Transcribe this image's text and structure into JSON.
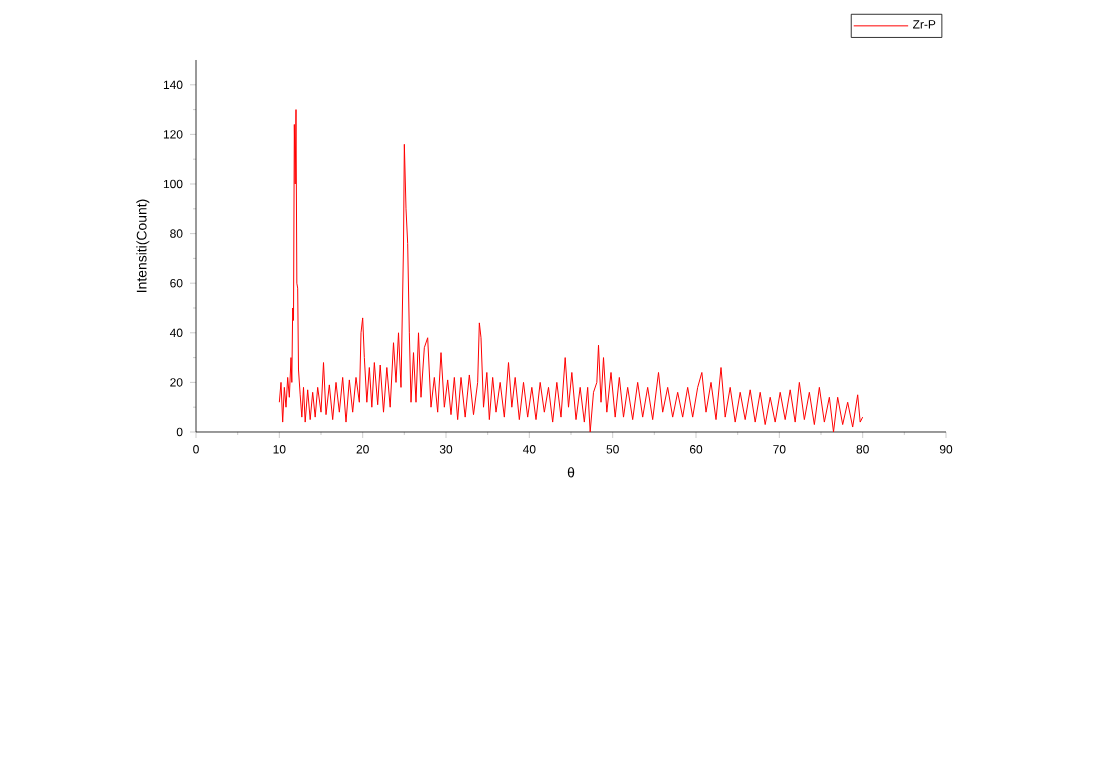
{
  "chart_data": {
    "type": "line",
    "xlabel": "θ",
    "ylabel": "Intensiti(Count)",
    "xlim": [
      0,
      90
    ],
    "ylim": [
      0,
      150
    ],
    "xticks": [
      0,
      10,
      20,
      30,
      40,
      50,
      60,
      70,
      80,
      90
    ],
    "yticks": [
      0,
      20,
      40,
      60,
      80,
      100,
      120,
      140
    ],
    "grid": false,
    "legend": "top right",
    "marker": "none",
    "line_style": "solid",
    "series": [
      {
        "name": "Zr-P",
        "color": "#ff0000",
        "x": [
          10.0,
          10.2,
          10.4,
          10.6,
          10.8,
          11.0,
          11.2,
          11.4,
          11.5,
          11.6,
          11.7,
          11.8,
          11.9,
          12.0,
          12.1,
          12.2,
          12.3,
          12.5,
          12.7,
          12.9,
          13.1,
          13.4,
          13.7,
          14.0,
          14.3,
          14.6,
          15.0,
          15.3,
          15.6,
          16.0,
          16.4,
          16.8,
          17.2,
          17.6,
          18.0,
          18.4,
          18.8,
          19.2,
          19.6,
          19.8,
          20.0,
          20.2,
          20.5,
          20.8,
          21.1,
          21.4,
          21.8,
          22.1,
          22.5,
          22.9,
          23.3,
          23.7,
          24.0,
          24.3,
          24.6,
          24.9,
          25.0,
          25.2,
          25.4,
          25.6,
          25.8,
          26.1,
          26.4,
          26.7,
          27.0,
          27.4,
          27.8,
          28.2,
          28.6,
          29.0,
          29.4,
          29.8,
          30.2,
          30.6,
          31.0,
          31.4,
          31.8,
          32.3,
          32.8,
          33.3,
          33.8,
          34.0,
          34.2,
          34.5,
          34.9,
          35.2,
          35.6,
          36.0,
          36.5,
          37.0,
          37.5,
          37.9,
          38.3,
          38.8,
          39.3,
          39.8,
          40.3,
          40.8,
          41.3,
          41.8,
          42.3,
          42.8,
          43.3,
          43.8,
          44.3,
          44.7,
          45.1,
          45.6,
          46.1,
          46.6,
          47.0,
          47.3,
          47.7,
          48.1,
          48.3,
          48.6,
          48.9,
          49.3,
          49.8,
          50.3,
          50.8,
          51.3,
          51.8,
          52.4,
          53.0,
          53.6,
          54.2,
          54.8,
          55.5,
          56.0,
          56.6,
          57.2,
          57.8,
          58.4,
          59.0,
          59.6,
          60.2,
          60.7,
          61.2,
          61.8,
          62.4,
          63.0,
          63.5,
          64.1,
          64.7,
          65.3,
          65.9,
          66.5,
          67.1,
          67.7,
          68.3,
          68.9,
          69.5,
          70.1,
          70.7,
          71.3,
          71.9,
          72.4,
          73.0,
          73.6,
          74.2,
          74.8,
          75.4,
          76.0,
          76.5,
          77.0,
          77.6,
          78.2,
          78.8,
          79.4,
          79.7,
          80.0
        ],
        "values": [
          12,
          20,
          4,
          18,
          10,
          22,
          14,
          30,
          20,
          50,
          45,
          124,
          100,
          130,
          60,
          58,
          25,
          15,
          6,
          18,
          4,
          17,
          5,
          16,
          6,
          18,
          8,
          28,
          7,
          19,
          5,
          20,
          8,
          22,
          4,
          21,
          8,
          22,
          12,
          40,
          46,
          30,
          12,
          26,
          10,
          28,
          11,
          27,
          8,
          26,
          10,
          36,
          20,
          40,
          18,
          75,
          116,
          90,
          76,
          40,
          12,
          32,
          12,
          40,
          14,
          34,
          38,
          10,
          22,
          8,
          32,
          10,
          21,
          7,
          22,
          5,
          22,
          6,
          23,
          7,
          20,
          44,
          38,
          10,
          24,
          5,
          22,
          8,
          20,
          6,
          28,
          10,
          22,
          5,
          20,
          6,
          18,
          5,
          20,
          8,
          18,
          4,
          20,
          6,
          30,
          10,
          24,
          5,
          18,
          4,
          18,
          0,
          16,
          20,
          35,
          12,
          30,
          8,
          24,
          6,
          22,
          6,
          18,
          5,
          20,
          6,
          18,
          5,
          24,
          8,
          18,
          6,
          16,
          6,
          18,
          6,
          18,
          24,
          8,
          20,
          5,
          26,
          6,
          18,
          4,
          16,
          5,
          17,
          4,
          16,
          3,
          14,
          4,
          16,
          5,
          17,
          4,
          20,
          5,
          16,
          3,
          18,
          4,
          14,
          0,
          14,
          3,
          12,
          2,
          15,
          4,
          6
        ]
      }
    ]
  }
}
